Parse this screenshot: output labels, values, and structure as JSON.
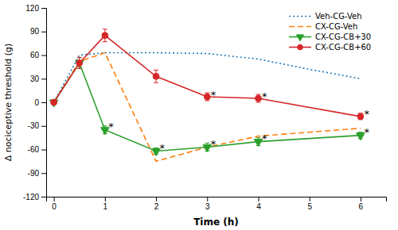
{
  "chart_data": {
    "type": "line",
    "xlabel": "Time (h)",
    "ylabel": "Δ nociceptive threshold (g)",
    "xlim": [
      -0.15,
      6.5
    ],
    "ylim": [
      -120,
      120
    ],
    "xticks": [
      0,
      1,
      2,
      3,
      4,
      5,
      6
    ],
    "yticks": [
      -120,
      -90,
      -60,
      -30,
      0,
      30,
      60,
      90,
      120
    ],
    "grid": false,
    "legend": "upper right",
    "series": [
      {
        "name": "Veh-CG-Veh",
        "line_style": "dotted",
        "x": [
          0,
          0.5,
          1,
          2,
          3,
          4,
          5,
          6
        ],
        "values": [
          0,
          60,
          63,
          63,
          62,
          55,
          42,
          30
        ]
      },
      {
        "name": "CX-CG-Veh",
        "line_style": "dashed",
        "x": [
          0,
          0.5,
          1,
          2,
          3,
          4,
          5,
          6
        ],
        "values": [
          0,
          52,
          63,
          -75,
          -57,
          -43,
          -38,
          -33
        ]
      },
      {
        "name": "CX-CG-CB+30",
        "line_style": "solid",
        "marker": "triangle-down",
        "x": [
          0,
          0.5,
          1,
          2,
          3,
          4,
          6
        ],
        "values": [
          0,
          50,
          -35,
          -62,
          -57,
          -50,
          -42
        ],
        "errors": [
          2,
          7,
          5,
          4,
          5,
          5,
          4
        ]
      },
      {
        "name": "CX-CG-CB+60",
        "line_style": "solid",
        "marker": "circle",
        "x": [
          0,
          0.5,
          1,
          2,
          3,
          4,
          6
        ],
        "values": [
          0,
          50,
          85,
          33,
          7,
          5,
          -18
        ],
        "errors": [
          2,
          7,
          8,
          8,
          5,
          5,
          4
        ]
      }
    ],
    "annotations": [
      {
        "x": 1.07,
        "y": -28,
        "text": "*"
      },
      {
        "x": 2.07,
        "y": -55,
        "text": "*"
      },
      {
        "x": 3.07,
        "y": -50,
        "text": "*"
      },
      {
        "x": 4.07,
        "y": -43,
        "text": "*"
      },
      {
        "x": 3.07,
        "y": 12,
        "text": "*"
      },
      {
        "x": 4.07,
        "y": 10,
        "text": "*"
      },
      {
        "x": 6.07,
        "y": -12,
        "text": "*"
      },
      {
        "x": 6.07,
        "y": -35,
        "text": "*"
      }
    ]
  }
}
